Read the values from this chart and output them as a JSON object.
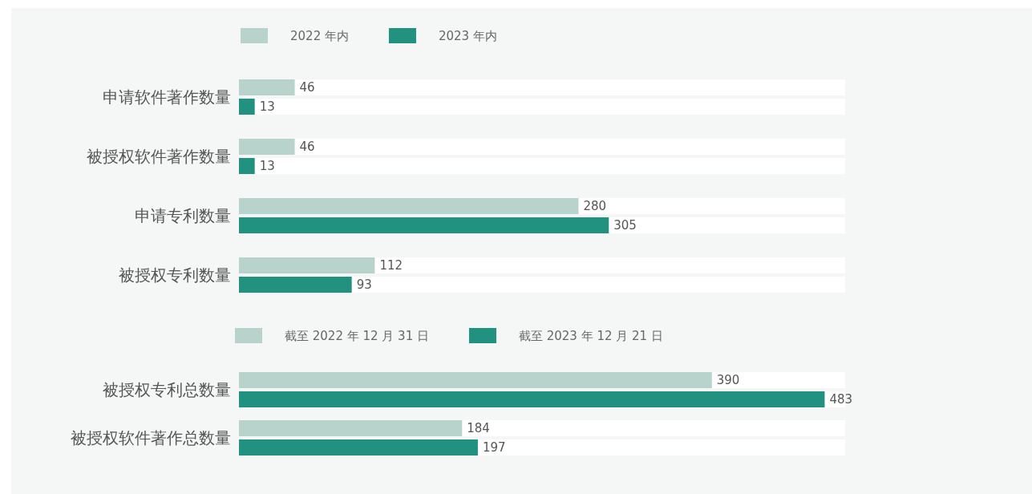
{
  "chart_data": [
    {
      "type": "bar",
      "orientation": "horizontal",
      "categories": [
        "申请软件著作数量",
        "被授权软件著作数量",
        "申请专利数量",
        "被授权专利数量"
      ],
      "series": [
        {
          "name": "2022 年内",
          "color": "#b8d3cb",
          "values": [
            46,
            46,
            280,
            112
          ]
        },
        {
          "name": "2023 年内",
          "color": "#20927f",
          "values": [
            13,
            13,
            305,
            93
          ]
        }
      ],
      "data_labels": true,
      "legend": "top",
      "grid": false,
      "tick_labels": "y"
    },
    {
      "type": "bar",
      "orientation": "horizontal",
      "categories": [
        "被授权专利总数量",
        "被授权软件著作总数量"
      ],
      "series": [
        {
          "name": "截至 2022 年 12 月 31 日",
          "color": "#b8d3cb",
          "values": [
            390,
            184
          ]
        },
        {
          "name": "截至 2023 年 12 月 21 日",
          "color": "#20927f",
          "values": [
            483,
            197
          ]
        }
      ],
      "data_labels": true,
      "legend": "top",
      "grid": false,
      "tick_labels": "y"
    }
  ]
}
